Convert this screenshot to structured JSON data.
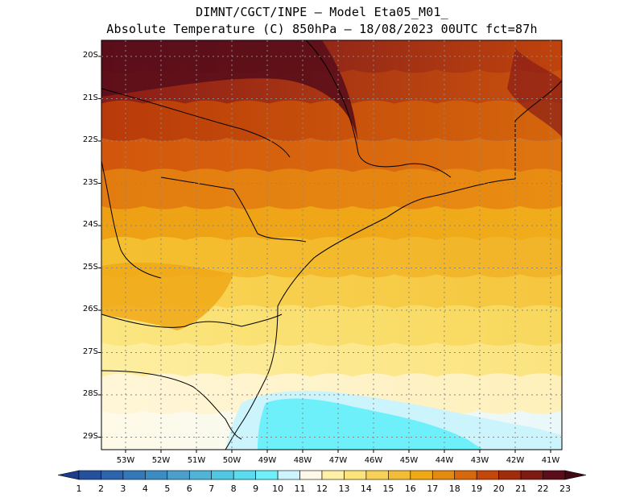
{
  "header": {
    "line1": "DIMNT/CGCT/INPE –  Model Eta05_M01_",
    "line2": "Absolute Temperature (C) 850hPa –  18/08/2023 00UTC fct=87h"
  },
  "axes": {
    "lat_labels": [
      "20S",
      "21S",
      "22S",
      "23S",
      "24S",
      "25S",
      "26S",
      "27S",
      "28S",
      "29S"
    ],
    "lon_labels": [
      "53W",
      "52W",
      "51W",
      "50W",
      "49W",
      "48W",
      "47W",
      "46W",
      "45W",
      "44W",
      "43W",
      "42W",
      "41W"
    ]
  },
  "colorbar": {
    "labels": [
      "1",
      "2",
      "3",
      "4",
      "5",
      "6",
      "7",
      "8",
      "9",
      "10",
      "11",
      "12",
      "13",
      "14",
      "15",
      "16",
      "17",
      "18",
      "19",
      "20",
      "21",
      "22",
      "23"
    ],
    "colors": [
      "#1e3c8c",
      "#24509e",
      "#2c64ae",
      "#3478ba",
      "#3c8cc4",
      "#4aa0cc",
      "#50b4d8",
      "#50c8e4",
      "#5adcf0",
      "#6ef0fa",
      "#ccf4fc",
      "#fff8e8",
      "#fff0a8",
      "#fde47a",
      "#f8d256",
      "#f2bc36",
      "#f0a816",
      "#e48a10",
      "#d8680c",
      "#c44608",
      "#a02c0c",
      "#7e1a12",
      "#5a0e1a",
      "#400a14"
    ]
  },
  "map": {
    "bands": [
      {
        "top": "#6a0e22",
        "bottom": "#c8480a"
      },
      {
        "top": "#8a1c18",
        "bottom": "#d0560c"
      },
      {
        "top": "#b83a0a",
        "bottom": "#d86a0c"
      },
      {
        "top": "#d2560c",
        "bottom": "#e07810"
      },
      {
        "top": "#e27c10",
        "bottom": "#e98e12"
      },
      {
        "top": "#eea014",
        "bottom": "#f0ae1c"
      },
      {
        "top": "#f4c030",
        "bottom": "#f2b228"
      },
      {
        "top": "#f8d656",
        "bottom": "#f6c43c"
      },
      {
        "top": "#fbe680",
        "bottom": "#f8d658"
      },
      {
        "top": "#fdeea0",
        "bottom": "#fbe27c"
      },
      {
        "top": "#fff6d8",
        "bottom": "#fef0b8"
      },
      {
        "top": "#fffae8",
        "bottom": "#e8f8fc"
      }
    ],
    "cold_pool_color": "#6ef0fa",
    "cold_edge_color": "#ccf4fc"
  }
}
